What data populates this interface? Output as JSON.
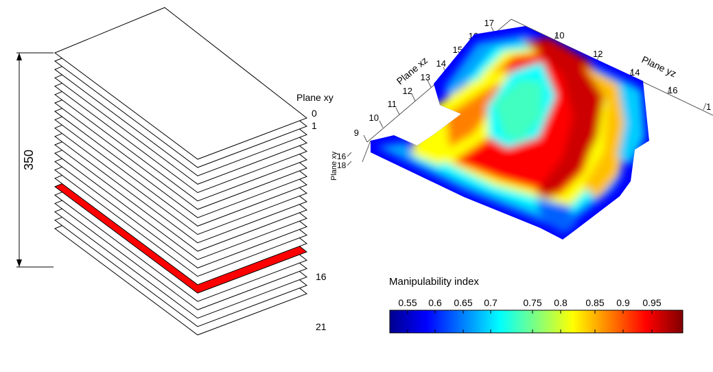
{
  "stack": {
    "dimension_label": "350",
    "plane_axis_label": "Plane xy",
    "layer_labels": [
      "0",
      "1",
      "16",
      "21"
    ],
    "highlight_layer": 16,
    "highlight_color": "#ff0000"
  },
  "surface": {
    "axis_labels": {
      "xz": "Plane xz",
      "yz": "Plane yz",
      "xy": "Plane xy"
    },
    "xz_ticks": [
      "9",
      "10",
      "11",
      "12",
      "13",
      "14",
      "15",
      "16",
      "17"
    ],
    "yz_ticks": [
      "10",
      "12",
      "14",
      "16",
      "1"
    ],
    "xy_ticks": [
      "16",
      "18"
    ]
  },
  "colorbar": {
    "title": "Manipulability index",
    "ticks": [
      "0.55",
      "0.6",
      "0.65",
      "0.7",
      "0.75",
      "0.8",
      "0.85",
      "0.9",
      "0.95"
    ],
    "colormap": "jet",
    "colors": [
      "#00008f",
      "#0000ff",
      "#00ffff",
      "#ffff00",
      "#ff0000",
      "#800000"
    ]
  }
}
